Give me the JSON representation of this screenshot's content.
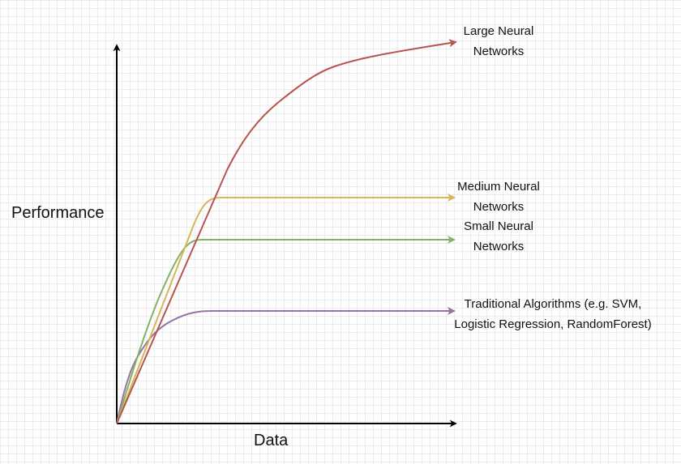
{
  "axes": {
    "y_label": "Performance",
    "x_label": "Data"
  },
  "curves": [
    {
      "id": "large",
      "label_lines": [
        "Large Neural",
        "Networks"
      ],
      "color": "#b85450"
    },
    {
      "id": "medium",
      "label_lines": [
        "Medium Neural",
        "Networks"
      ],
      "color": "#d6b656"
    },
    {
      "id": "small",
      "label_lines": [
        "Small Neural",
        "Networks"
      ],
      "color": "#82b366"
    },
    {
      "id": "traditional",
      "label_lines": [
        "Traditional Algorithms (e.g. SVM,",
        "Logistic Regression, RandomForest)"
      ],
      "color": "#9673a6"
    }
  ]
}
